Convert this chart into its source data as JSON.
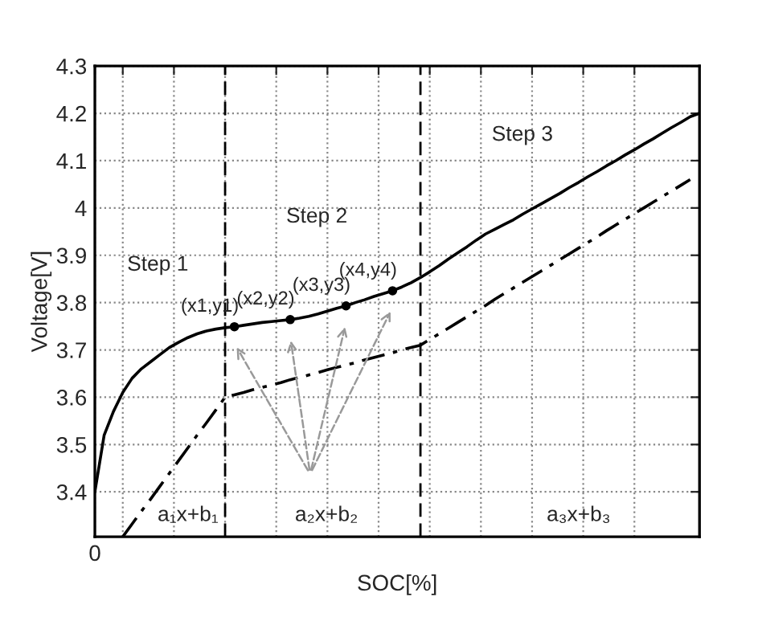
{
  "chart_data": {
    "type": "line",
    "xlabel": "SOC[%]",
    "ylabel": "Voltage[V]",
    "categories": [
      "0",
      null,
      null,
      null,
      null,
      null,
      null,
      null,
      null,
      null,
      null,
      null,
      null,
      null,
      null,
      null,
      null,
      null,
      null,
      null,
      null,
      null,
      null,
      null,
      null,
      null,
      null,
      null,
      null,
      null,
      null,
      null,
      null,
      null,
      null,
      null,
      null,
      null,
      null,
      null,
      null,
      null,
      null,
      null,
      null,
      null,
      null,
      null,
      null,
      null,
      null,
      null,
      null,
      null,
      null,
      null,
      null,
      null,
      null,
      null,
      null,
      null,
      null,
      null,
      null,
      null
    ],
    "series": [
      {
        "color": "#000000",
        "line_style": "solid",
        "values": [
          3.4,
          3.52,
          3.57,
          3.61,
          3.64,
          3.66,
          3.675,
          3.69,
          3.705,
          3.716,
          3.726,
          3.734,
          3.74,
          3.744,
          3.747,
          3.749,
          3.752,
          3.755,
          3.758,
          3.76,
          3.762,
          3.764,
          3.767,
          3.771,
          3.776,
          3.782,
          3.788,
          3.793,
          3.8,
          3.806,
          3.813,
          3.819,
          3.825,
          3.833,
          3.842,
          3.853,
          3.865,
          3.878,
          3.892,
          3.905,
          3.918,
          3.932,
          3.945,
          3.955,
          3.965,
          3.975,
          3.987,
          3.998,
          4.009,
          4.02,
          4.031,
          4.043,
          4.054,
          4.066,
          4.077,
          4.089,
          4.1,
          4.112,
          4.123,
          4.135,
          4.146,
          4.158,
          4.17,
          4.181,
          4.193,
          4.2
        ]
      },
      {
        "color": "#000000",
        "line_style": "dashdot",
        "values": [
          null,
          null,
          null,
          3.305,
          3.332,
          3.359,
          3.385,
          3.412,
          3.439,
          3.466,
          3.493,
          3.52,
          3.546,
          3.573,
          3.6,
          3.605,
          3.61,
          3.616,
          3.621,
          3.626,
          3.631,
          3.637,
          3.642,
          3.647,
          3.652,
          3.658,
          3.663,
          3.668,
          3.673,
          3.679,
          3.684,
          3.689,
          3.694,
          3.7,
          3.705,
          3.71,
          3.722,
          3.734,
          3.746,
          3.758,
          3.77,
          3.782,
          3.794,
          3.807,
          3.819,
          3.831,
          3.843,
          3.855,
          3.867,
          3.879,
          3.891,
          3.903,
          3.915,
          3.927,
          3.939,
          3.952,
          3.964,
          3.976,
          3.988,
          4.0,
          4.012,
          4.024,
          4.036,
          4.048,
          4.06,
          null
        ]
      },
      {
        "type": "scatter",
        "color": "#000000",
        "marker": "circle",
        "values": [
          null,
          null,
          null,
          null,
          null,
          null,
          null,
          null,
          null,
          null,
          null,
          null,
          null,
          null,
          null,
          3.749,
          null,
          null,
          null,
          null,
          null,
          3.764,
          null,
          null,
          null,
          null,
          null,
          3.793,
          null,
          null,
          null,
          null,
          3.825,
          null,
          null,
          null,
          null,
          null,
          null,
          null,
          null,
          null,
          null,
          null,
          null,
          null,
          null,
          null,
          null,
          null,
          null,
          null,
          null,
          null,
          null,
          null,
          null,
          null,
          null,
          null,
          null,
          null,
          null,
          null,
          null,
          null
        ],
        "value_labels": [
          null,
          null,
          null,
          null,
          null,
          null,
          null,
          null,
          null,
          null,
          null,
          null,
          null,
          null,
          null,
          "(x1,y1)",
          null,
          null,
          null,
          null,
          null,
          "(x2,y2)",
          null,
          null,
          null,
          null,
          null,
          "(x3,y3)",
          null,
          null,
          null,
          null,
          "(x4,y4)",
          null,
          null,
          null,
          null,
          null,
          null,
          null,
          null,
          null,
          null,
          null,
          null,
          null,
          null,
          null,
          null,
          null,
          null,
          null,
          null,
          null,
          null,
          null,
          null,
          null,
          null,
          null,
          null,
          null,
          null,
          null,
          null,
          null
        ]
      }
    ],
    "ylim": [
      3.305,
      4.3
    ],
    "yticks": [
      3.4,
      3.5,
      3.6,
      3.7,
      3.8,
      3.9,
      {
        "value": 4.0,
        "label": "4"
      },
      4.1,
      4.2,
      4.3
    ],
    "annotations": [
      "Step 1",
      "Step 2",
      "Step 3",
      "a₁x+b₁",
      "a₂x+b₂",
      "a₃x+b₃"
    ],
    "grid": true
  }
}
